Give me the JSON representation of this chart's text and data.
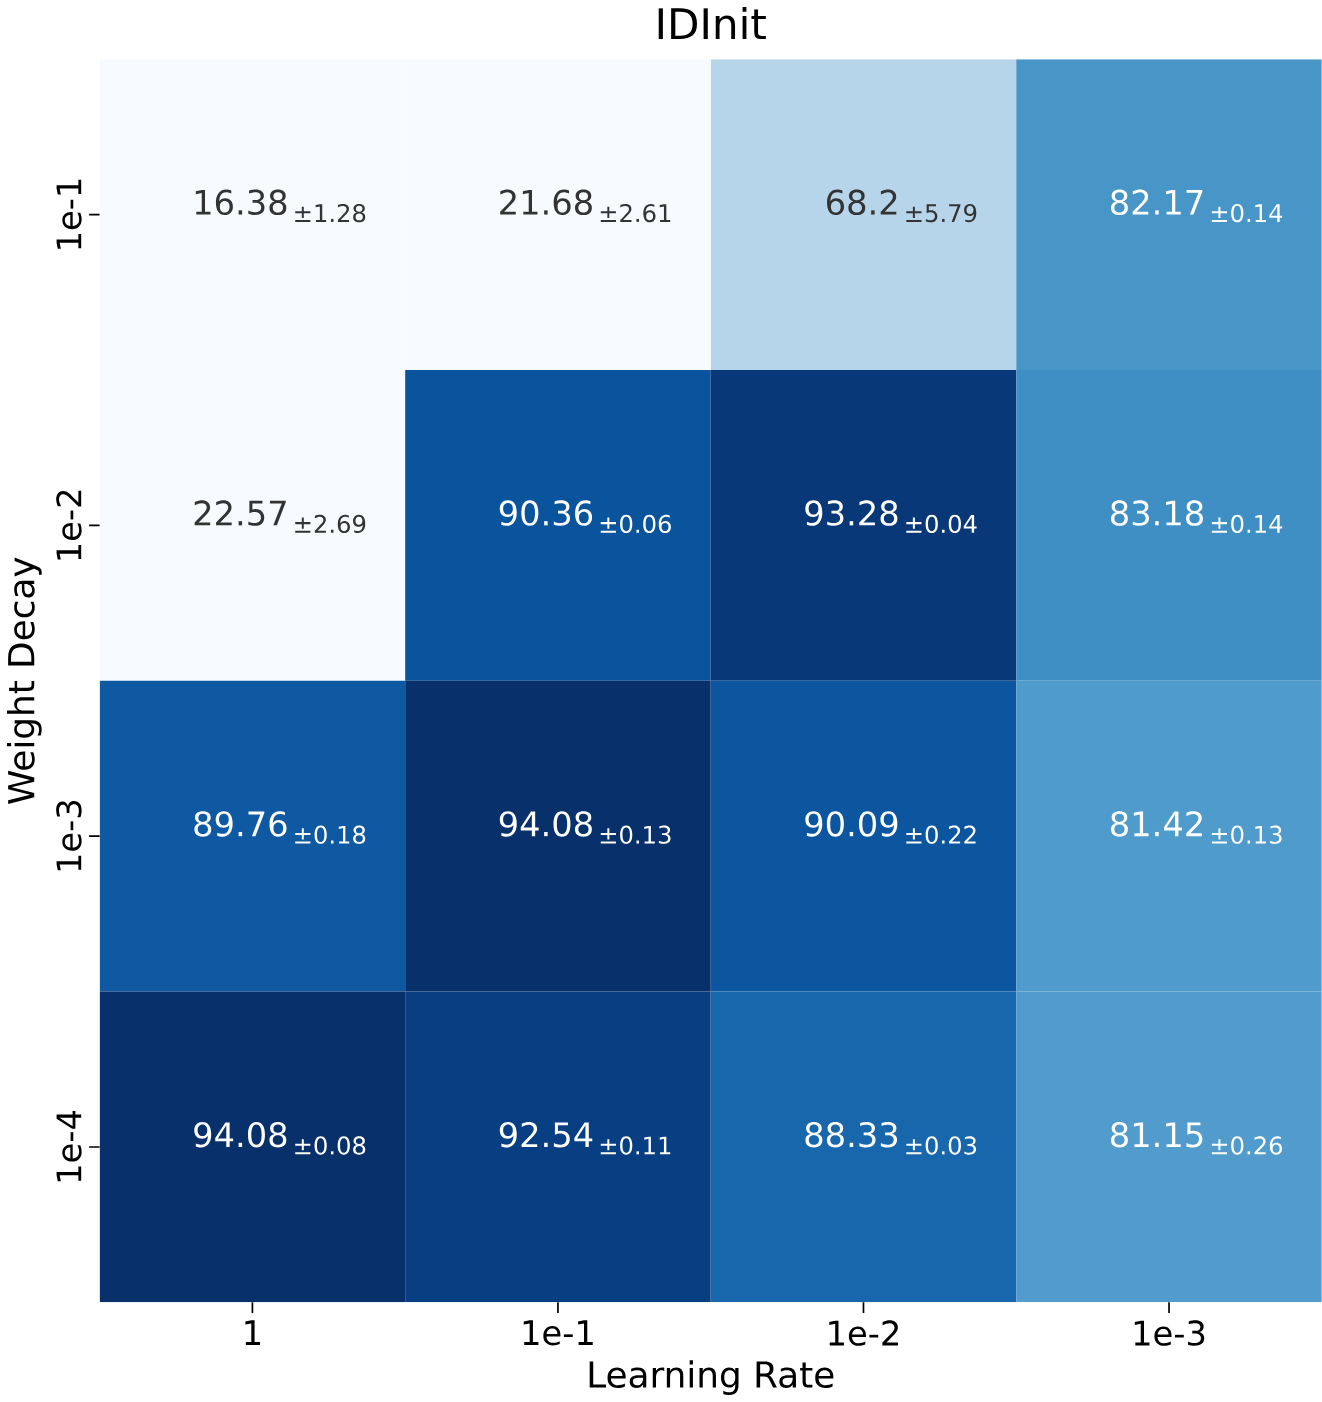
{
  "chart_data": {
    "type": "heatmap",
    "title": "IDInit",
    "xlabel": "Learning Rate",
    "ylabel": "Weight Decay",
    "categories": [
      "1",
      "1e-1",
      "1e-2",
      "1e-3"
    ],
    "y_categories": [
      "1e-1",
      "1e-2",
      "1e-3",
      "1e-4"
    ],
    "cells": [
      [
        16.38,
        21.68,
        68.2,
        82.17
      ],
      [
        22.57,
        90.36,
        93.28,
        83.18
      ],
      [
        89.76,
        94.08,
        90.09,
        81.42
      ],
      [
        94.08,
        92.54,
        88.33,
        81.15
      ]
    ],
    "data_labels": true,
    "annotations": [
      "±1.28",
      "±2.61",
      "±5.79",
      "±0.14",
      "±2.69",
      "±0.06",
      "±0.04",
      "±0.14",
      "±0.18",
      "±0.13",
      "±0.22",
      "±0.13",
      "±0.08",
      "±0.11",
      "±0.03",
      "±0.26"
    ]
  }
}
